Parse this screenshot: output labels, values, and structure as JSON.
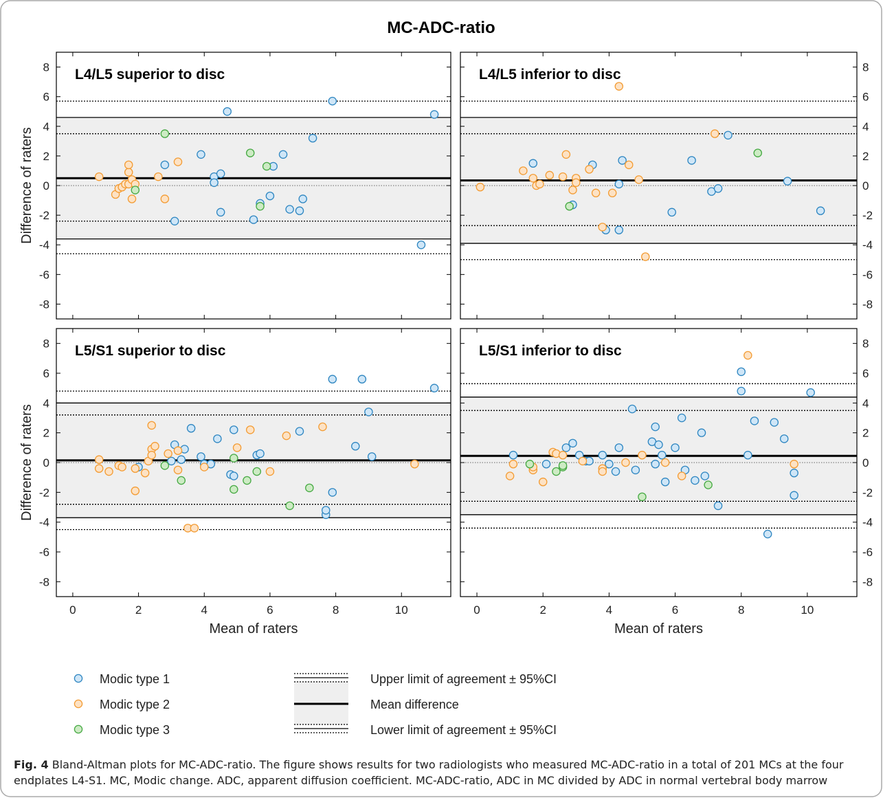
{
  "figure": {
    "title": "MC-ADC-ratio",
    "caption_label": "Fig. 4",
    "caption_text": "Bland-Altman plots for MC-ADC-ratio. The figure shows results for two radiologists who measured MC-ADC-ratio in a total of 201 MCs at the four endplates L4-S1. MC, Modic change. ADC, apparent diffusion coefficient. MC-ADC-ratio, ADC in MC divided by ADC in normal vertebral body marrow"
  },
  "legend": {
    "markers": [
      {
        "label": "Modic type 1",
        "color": "#cfe6f7",
        "edge": "#2e86c1"
      },
      {
        "label": "Modic type 2",
        "color": "#fde2c4",
        "edge": "#f39c34"
      },
      {
        "label": "Modic type 3",
        "color": "#cdebc4",
        "edge": "#46a943"
      }
    ],
    "lines": [
      "Upper limit of agreement ± 95%CI",
      "Mean difference",
      "Lower limit of agreement ± 95%CI"
    ]
  },
  "chart_data": [
    {
      "type": "scatter",
      "title": "L4/L5 superior to disc",
      "xlabel": "",
      "ylabel": "Difference of raters",
      "xlim": [
        -0.5,
        11.5
      ],
      "ylim": [
        -9,
        9
      ],
      "xticks": [
        0,
        2,
        4,
        6,
        8,
        10
      ],
      "yticks": [
        -8,
        -6,
        -4,
        -2,
        0,
        2,
        4,
        6,
        8
      ],
      "mean_difference": 0.5,
      "upper_loa": 4.6,
      "upper_loa_ci": [
        3.5,
        5.7
      ],
      "lower_loa": -3.6,
      "lower_loa_ci": [
        -4.6,
        -2.4
      ],
      "series": [
        {
          "name": "Modic type 1",
          "points": [
            [
              2.8,
              1.4
            ],
            [
              3.1,
              -2.4
            ],
            [
              3.9,
              2.1
            ],
            [
              4.3,
              0.6
            ],
            [
              4.3,
              0.2
            ],
            [
              4.5,
              0.8
            ],
            [
              4.5,
              -1.8
            ],
            [
              4.7,
              5.0
            ],
            [
              5.5,
              -2.3
            ],
            [
              5.7,
              -1.2
            ],
            [
              6.0,
              -0.7
            ],
            [
              6.1,
              1.3
            ],
            [
              6.4,
              2.1
            ],
            [
              6.6,
              -1.6
            ],
            [
              6.9,
              -1.7
            ],
            [
              7.0,
              -0.9
            ],
            [
              7.3,
              3.2
            ],
            [
              7.9,
              5.7
            ],
            [
              10.6,
              -4.0
            ],
            [
              11.0,
              4.8
            ]
          ]
        },
        {
          "name": "Modic type 2",
          "points": [
            [
              0.8,
              0.6
            ],
            [
              1.3,
              -0.6
            ],
            [
              1.4,
              -0.2
            ],
            [
              1.5,
              -0.1
            ],
            [
              1.6,
              0.1
            ],
            [
              1.7,
              0.9
            ],
            [
              1.7,
              1.4
            ],
            [
              1.7,
              0.1
            ],
            [
              1.8,
              -0.9
            ],
            [
              1.8,
              0.4
            ],
            [
              1.9,
              0.1
            ],
            [
              2.6,
              0.6
            ],
            [
              2.8,
              -0.9
            ],
            [
              3.2,
              1.6
            ]
          ]
        },
        {
          "name": "Modic type 3",
          "points": [
            [
              1.9,
              -0.3
            ],
            [
              2.8,
              3.5
            ],
            [
              5.4,
              2.2
            ],
            [
              5.7,
              -1.4
            ],
            [
              5.9,
              1.3
            ]
          ]
        }
      ]
    },
    {
      "type": "scatter",
      "title": "L4/L5 inferior to disc",
      "xlabel": "",
      "ylabel": "",
      "xlim": [
        -0.5,
        11.5
      ],
      "ylim": [
        -9,
        9
      ],
      "xticks": [
        0,
        2,
        4,
        6,
        8,
        10
      ],
      "yticks": [
        -8,
        -6,
        -4,
        -2,
        0,
        2,
        4,
        6,
        8
      ],
      "mean_difference": 0.35,
      "upper_loa": 4.6,
      "upper_loa_ci": [
        3.5,
        5.7
      ],
      "lower_loa": -3.9,
      "lower_loa_ci": [
        -5.0,
        -2.7
      ],
      "series": [
        {
          "name": "Modic type 1",
          "points": [
            [
              1.7,
              1.5
            ],
            [
              2.9,
              -1.3
            ],
            [
              3.5,
              1.4
            ],
            [
              3.9,
              -3.0
            ],
            [
              4.3,
              0.1
            ],
            [
              4.3,
              -3.0
            ],
            [
              4.4,
              1.7
            ],
            [
              5.9,
              -1.8
            ],
            [
              6.5,
              1.7
            ],
            [
              7.1,
              -0.4
            ],
            [
              7.3,
              -0.2
            ],
            [
              7.6,
              3.4
            ],
            [
              9.4,
              0.3
            ],
            [
              10.4,
              -1.7
            ]
          ]
        },
        {
          "name": "Modic type 2",
          "points": [
            [
              0.1,
              -0.1
            ],
            [
              1.4,
              1.0
            ],
            [
              1.7,
              0.5
            ],
            [
              1.8,
              0.0
            ],
            [
              1.9,
              0.1
            ],
            [
              2.2,
              0.7
            ],
            [
              2.6,
              0.6
            ],
            [
              2.7,
              2.1
            ],
            [
              2.9,
              -0.3
            ],
            [
              3.0,
              0.5
            ],
            [
              3.0,
              0.2
            ],
            [
              3.4,
              1.1
            ],
            [
              3.6,
              -0.5
            ],
            [
              3.8,
              -2.8
            ],
            [
              4.1,
              -0.5
            ],
            [
              4.3,
              6.7
            ],
            [
              4.6,
              1.4
            ],
            [
              4.9,
              0.4
            ],
            [
              5.1,
              -4.8
            ],
            [
              7.2,
              3.5
            ]
          ]
        },
        {
          "name": "Modic type 3",
          "points": [
            [
              2.8,
              -1.4
            ],
            [
              8.5,
              2.2
            ]
          ]
        }
      ]
    },
    {
      "type": "scatter",
      "title": "L5/S1 superior to disc",
      "xlabel": "Mean of raters",
      "ylabel": "Difference of raters",
      "xlim": [
        -0.5,
        11.5
      ],
      "ylim": [
        -9,
        9
      ],
      "xticks": [
        0,
        2,
        4,
        6,
        8,
        10
      ],
      "yticks": [
        -8,
        -6,
        -4,
        -2,
        0,
        2,
        4,
        6,
        8
      ],
      "mean_difference": 0.15,
      "upper_loa": 4.0,
      "upper_loa_ci": [
        3.2,
        4.8
      ],
      "lower_loa": -3.7,
      "lower_loa_ci": [
        -4.5,
        -2.8
      ],
      "series": [
        {
          "name": "Modic type 1",
          "points": [
            [
              2.0,
              -0.3
            ],
            [
              3.0,
              0.1
            ],
            [
              3.1,
              1.2
            ],
            [
              3.3,
              0.2
            ],
            [
              3.4,
              0.9
            ],
            [
              3.6,
              2.3
            ],
            [
              3.9,
              0.4
            ],
            [
              4.0,
              -0.1
            ],
            [
              4.2,
              -0.1
            ],
            [
              4.4,
              1.6
            ],
            [
              4.8,
              -0.8
            ],
            [
              4.9,
              2.2
            ],
            [
              4.9,
              -0.9
            ],
            [
              5.6,
              0.5
            ],
            [
              5.7,
              0.6
            ],
            [
              6.9,
              2.1
            ],
            [
              7.7,
              -3.5
            ],
            [
              7.7,
              -3.2
            ],
            [
              7.9,
              -2.0
            ],
            [
              7.9,
              5.6
            ],
            [
              8.6,
              1.1
            ],
            [
              8.8,
              5.6
            ],
            [
              9.0,
              3.4
            ],
            [
              9.1,
              0.4
            ],
            [
              11.0,
              5.0
            ]
          ]
        },
        {
          "name": "Modic type 2",
          "points": [
            [
              0.8,
              -0.4
            ],
            [
              0.8,
              0.2
            ],
            [
              1.1,
              -0.6
            ],
            [
              1.4,
              -0.2
            ],
            [
              1.5,
              -0.3
            ],
            [
              1.9,
              -0.4
            ],
            [
              1.9,
              -1.9
            ],
            [
              2.2,
              -0.7
            ],
            [
              2.3,
              0.1
            ],
            [
              2.4,
              2.5
            ],
            [
              2.4,
              0.9
            ],
            [
              2.4,
              0.5
            ],
            [
              2.5,
              1.1
            ],
            [
              2.9,
              0.6
            ],
            [
              3.2,
              -0.5
            ],
            [
              3.2,
              0.8
            ],
            [
              3.5,
              -4.4
            ],
            [
              3.7,
              -4.4
            ],
            [
              4.0,
              -0.3
            ],
            [
              5.0,
              1.0
            ],
            [
              5.4,
              2.2
            ],
            [
              6.0,
              -0.6
            ],
            [
              6.5,
              1.8
            ],
            [
              7.6,
              2.4
            ],
            [
              10.4,
              -0.1
            ]
          ]
        },
        {
          "name": "Modic type 3",
          "points": [
            [
              2.8,
              -0.2
            ],
            [
              3.3,
              -1.2
            ],
            [
              4.9,
              0.3
            ],
            [
              4.9,
              -1.8
            ],
            [
              5.3,
              -1.2
            ],
            [
              5.6,
              -0.6
            ],
            [
              6.6,
              -2.9
            ],
            [
              7.2,
              -1.7
            ]
          ]
        }
      ]
    },
    {
      "type": "scatter",
      "title": "L5/S1 inferior to disc",
      "xlabel": "Mean of raters",
      "ylabel": "",
      "xlim": [
        -0.5,
        11.5
      ],
      "ylim": [
        -9,
        9
      ],
      "xticks": [
        0,
        2,
        4,
        6,
        8,
        10
      ],
      "yticks": [
        -8,
        -6,
        -4,
        -2,
        0,
        2,
        4,
        6,
        8
      ],
      "mean_difference": 0.45,
      "upper_loa": 4.4,
      "upper_loa_ci": [
        3.5,
        5.3
      ],
      "lower_loa": -3.5,
      "lower_loa_ci": [
        -4.4,
        -2.6
      ],
      "series": [
        {
          "name": "Modic type 1",
          "points": [
            [
              1.1,
              0.5
            ],
            [
              2.1,
              -0.1
            ],
            [
              2.7,
              1.0
            ],
            [
              2.9,
              1.3
            ],
            [
              3.1,
              0.5
            ],
            [
              3.3,
              0.1
            ],
            [
              3.4,
              0.1
            ],
            [
              3.8,
              0.5
            ],
            [
              4.0,
              -0.1
            ],
            [
              4.2,
              -0.6
            ],
            [
              4.3,
              1.0
            ],
            [
              4.7,
              3.6
            ],
            [
              4.8,
              -0.5
            ],
            [
              5.3,
              1.4
            ],
            [
              5.4,
              2.4
            ],
            [
              5.4,
              -0.1
            ],
            [
              5.5,
              1.2
            ],
            [
              5.6,
              0.5
            ],
            [
              5.7,
              -1.3
            ],
            [
              6.0,
              1.0
            ],
            [
              6.2,
              3.0
            ],
            [
              6.3,
              -0.5
            ],
            [
              6.6,
              -1.2
            ],
            [
              6.8,
              2.0
            ],
            [
              6.9,
              -0.9
            ],
            [
              7.3,
              -2.9
            ],
            [
              8.0,
              6.1
            ],
            [
              8.0,
              4.8
            ],
            [
              8.2,
              0.5
            ],
            [
              8.4,
              2.8
            ],
            [
              8.8,
              -4.8
            ],
            [
              9.0,
              2.7
            ],
            [
              9.3,
              1.6
            ],
            [
              9.6,
              -0.7
            ],
            [
              9.6,
              -2.2
            ],
            [
              10.1,
              4.7
            ]
          ]
        },
        {
          "name": "Modic type 2",
          "points": [
            [
              1.0,
              -0.9
            ],
            [
              1.1,
              -0.1
            ],
            [
              1.7,
              -0.5
            ],
            [
              1.7,
              -0.3
            ],
            [
              2.0,
              -1.3
            ],
            [
              2.3,
              0.7
            ],
            [
              2.4,
              0.6
            ],
            [
              2.6,
              0.5
            ],
            [
              3.2,
              0.1
            ],
            [
              3.8,
              -0.4
            ],
            [
              3.8,
              -0.6
            ],
            [
              4.5,
              0.0
            ],
            [
              5.0,
              0.5
            ],
            [
              5.7,
              0.0
            ],
            [
              6.2,
              -0.9
            ],
            [
              8.2,
              7.2
            ],
            [
              9.6,
              -0.1
            ]
          ]
        },
        {
          "name": "Modic type 3",
          "points": [
            [
              1.6,
              -0.1
            ],
            [
              2.4,
              -0.6
            ],
            [
              2.6,
              -0.3
            ],
            [
              2.6,
              -0.2
            ],
            [
              5.0,
              -2.3
            ],
            [
              7.0,
              -1.5
            ]
          ]
        }
      ]
    }
  ]
}
